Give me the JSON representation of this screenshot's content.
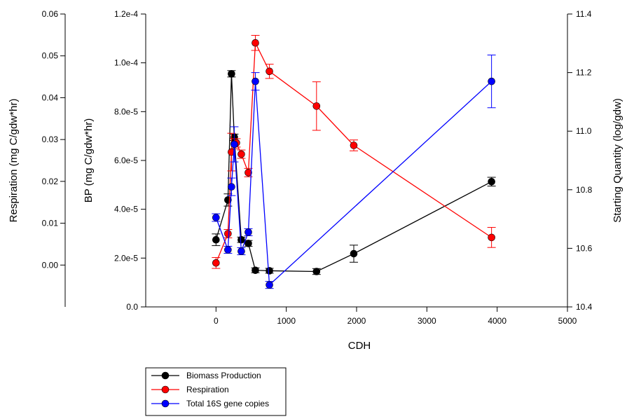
{
  "chart_data": {
    "type": "line",
    "xlabel": "CDH",
    "xlim": [
      -1000,
      5000
    ],
    "x_ticks": [
      "0",
      "1000",
      "2000",
      "3000",
      "4000",
      "5000"
    ],
    "axes": {
      "respiration": {
        "label": "Respiration (mg C/gdw*hr)",
        "ylim": [
          -0.01,
          0.06
        ],
        "ticks": [
          "0.00",
          "0.01",
          "0.02",
          "0.03",
          "0.04",
          "0.05",
          "0.06"
        ]
      },
      "bp": {
        "label": "BP (mg C/gdw*hr)",
        "ylim": [
          0.0,
          0.00012
        ],
        "ticks": [
          "0.0",
          "2.0e-5",
          "4.0e-5",
          "6.0e-5",
          "8.0e-5",
          "1.0e-4",
          "1.2e-4"
        ]
      },
      "starting_quantity": {
        "label": "Starting Quantity (log/gdw)",
        "ylim": [
          10.4,
          11.4
        ],
        "ticks": [
          "10.4",
          "10.6",
          "10.8",
          "11.0",
          "11.2",
          "11.4"
        ]
      }
    },
    "series": [
      {
        "name": "Biomass Production",
        "axis": "bp",
        "color": "#000000",
        "x": [
          0,
          170,
          220,
          260,
          360,
          460,
          560,
          760,
          1430,
          1960,
          3920
        ],
        "y": [
          2.75e-05,
          4.38e-05,
          9.55e-05,
          6.95e-05,
          2.75e-05,
          2.6e-05,
          1.5e-05,
          1.48e-05,
          1.45e-05,
          2.18e-05,
          5.13e-05
        ],
        "err": [
          2.4e-06,
          2.5e-06,
          1.3e-06,
          1.3e-06,
          1.1e-06,
          1.2e-06,
          1e-06,
          1e-06,
          1.2e-06,
          3.5e-06,
          1.8e-06
        ]
      },
      {
        "name": "Respiration",
        "axis": "respiration",
        "color": "#ff0000",
        "x": [
          0,
          170,
          220,
          260,
          290,
          360,
          460,
          560,
          760,
          1430,
          1960,
          3920
        ],
        "y": [
          0.0005,
          0.0075,
          0.027,
          0.029,
          0.0292,
          0.0265,
          0.0221,
          0.0531,
          0.0463,
          0.038,
          0.0286,
          0.0066
        ],
        "err": [
          0.0013,
          0.001,
          0.0045,
          0.0012,
          0.001,
          0.001,
          0.001,
          0.0018,
          0.0017,
          0.0058,
          0.0013,
          0.0024
        ]
      },
      {
        "name": "Total 16S gene copies",
        "axis": "starting_quantity",
        "color": "#0000ff",
        "x": [
          0,
          170,
          220,
          260,
          360,
          460,
          560,
          760,
          3920
        ],
        "y": [
          10.705,
          10.595,
          10.81,
          10.955,
          10.59,
          10.655,
          11.17,
          10.475,
          11.17
        ],
        "err": [
          0.013,
          0.012,
          0.03,
          0.06,
          0.012,
          0.012,
          0.03,
          0.012,
          0.09
        ]
      }
    ],
    "legend": {
      "position": "bottom-left",
      "entries": [
        "Biomass Production",
        "Respiration",
        "Total 16S gene copies"
      ]
    },
    "grid": false
  }
}
